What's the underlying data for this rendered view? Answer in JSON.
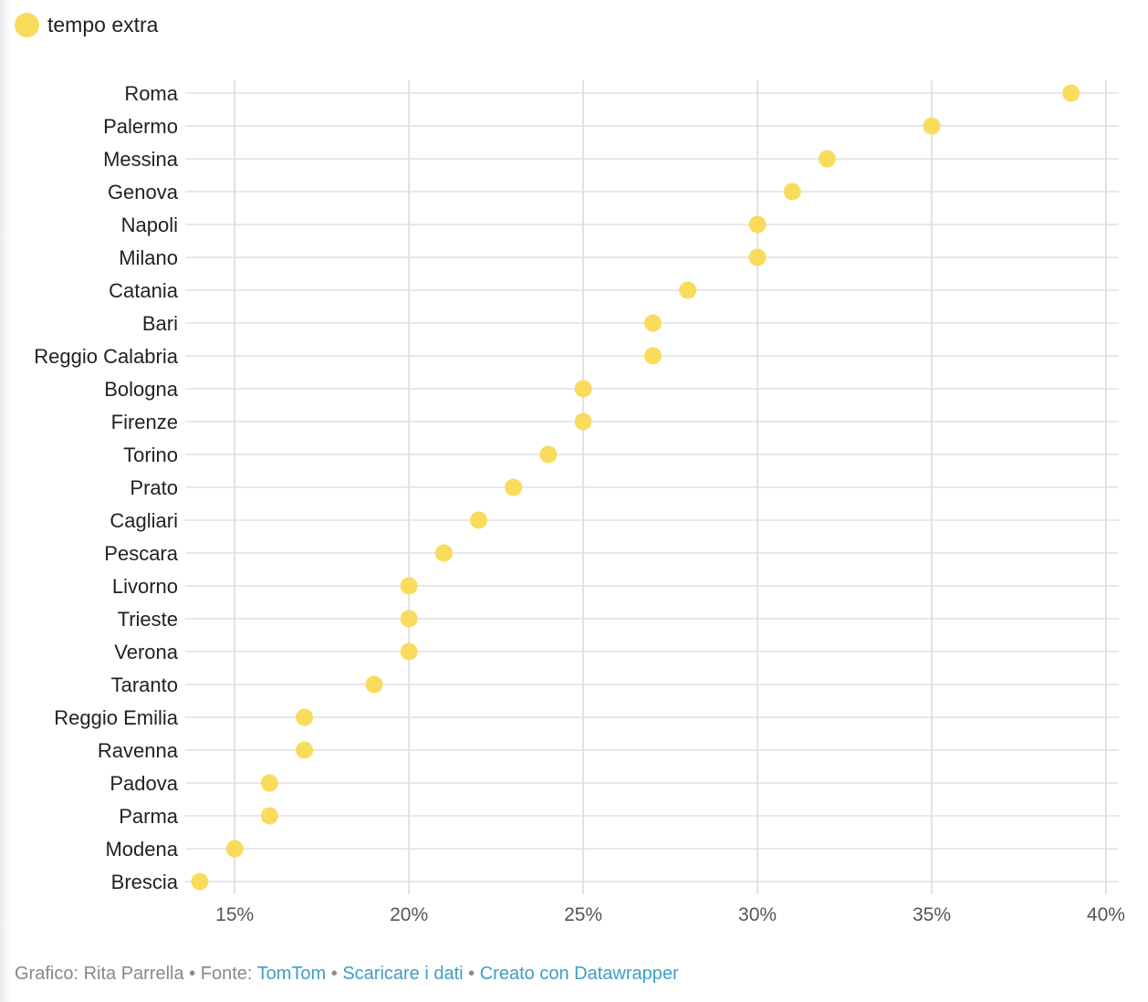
{
  "legend": {
    "label": "tempo extra",
    "color": "#f9dc5c"
  },
  "chart_data": {
    "type": "scatter",
    "orientation": "horizontal",
    "categories": [
      "Roma",
      "Palermo",
      "Messina",
      "Genova",
      "Napoli",
      "Milano",
      "Catania",
      "Bari",
      "Reggio Calabria",
      "Bologna",
      "Firenze",
      "Torino",
      "Prato",
      "Cagliari",
      "Pescara",
      "Livorno",
      "Trieste",
      "Verona",
      "Taranto",
      "Reggio Emilia",
      "Ravenna",
      "Padova",
      "Parma",
      "Modena",
      "Brescia"
    ],
    "series": [
      {
        "name": "tempo extra",
        "color": "#f9dc5c",
        "values": [
          39,
          35,
          32,
          31,
          30,
          30,
          28,
          27,
          27,
          25,
          25,
          24,
          23,
          22,
          21,
          20,
          20,
          20,
          19,
          17,
          17,
          16,
          16,
          15,
          14
        ]
      }
    ],
    "xticks": [
      15,
      20,
      25,
      30,
      35,
      40
    ],
    "xtick_labels": [
      "15%",
      "20%",
      "25%",
      "30%",
      "35%",
      "40%"
    ],
    "xlim": [
      14,
      40
    ],
    "grid": true,
    "legend_position": "top-left"
  },
  "footer": {
    "prefix": "Grafico: Rita Parrella • Fonte: ",
    "source_link": "TomTom",
    "sep1": " • ",
    "download_link": "Scaricare i dati",
    "sep2": " • ",
    "created_link": "Creato con Datawrapper"
  }
}
